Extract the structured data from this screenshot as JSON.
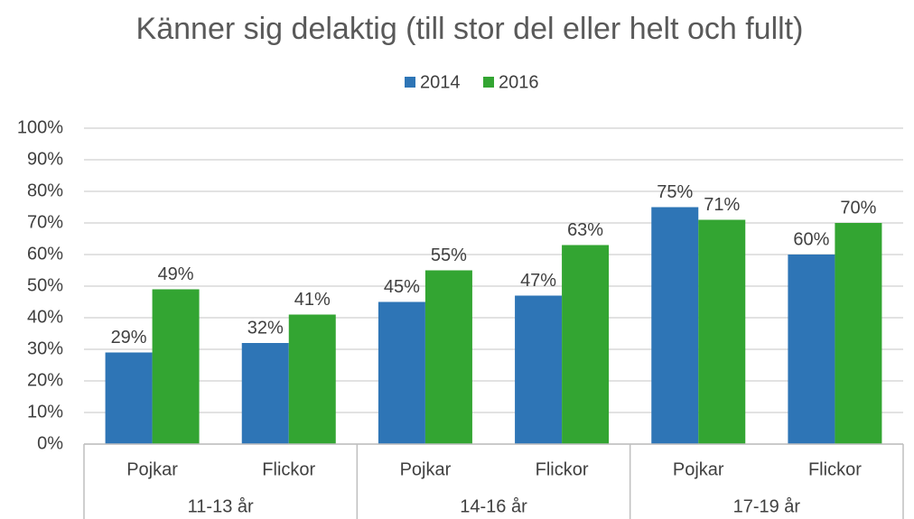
{
  "chart_data": {
    "type": "bar",
    "title": "Känner sig delaktig (till stor del eller helt och fullt)",
    "categories": [
      "Pojkar",
      "Flickor",
      "Pojkar",
      "Flickor",
      "Pojkar",
      "Flickor"
    ],
    "category_groups": [
      "11-13 år",
      "14-16 år",
      "17-19 år"
    ],
    "series": [
      {
        "name": "2014",
        "color": "#2e75b6",
        "values": [
          29,
          32,
          45,
          47,
          75,
          60
        ],
        "value_labels": [
          "29%",
          "32%",
          "45%",
          "47%",
          "75%",
          "60%"
        ]
      },
      {
        "name": "2016",
        "color": "#33a532",
        "values": [
          49,
          41,
          55,
          63,
          71,
          70
        ],
        "value_labels": [
          "49%",
          "41%",
          "55%",
          "63%",
          "71%",
          "70%"
        ]
      }
    ],
    "ylim": [
      0,
      100
    ],
    "yticks": [
      {
        "value": 0,
        "label": "0%"
      },
      {
        "value": 10,
        "label": "10%"
      },
      {
        "value": 20,
        "label": "20%"
      },
      {
        "value": 30,
        "label": "30%"
      },
      {
        "value": 40,
        "label": "40%"
      },
      {
        "value": 50,
        "label": "50%"
      },
      {
        "value": 60,
        "label": "60%"
      },
      {
        "value": 70,
        "label": "70%"
      },
      {
        "value": 80,
        "label": "80%"
      },
      {
        "value": 90,
        "label": "90%"
      },
      {
        "value": 100,
        "label": "100%"
      }
    ],
    "grid": true,
    "legend": "top"
  }
}
